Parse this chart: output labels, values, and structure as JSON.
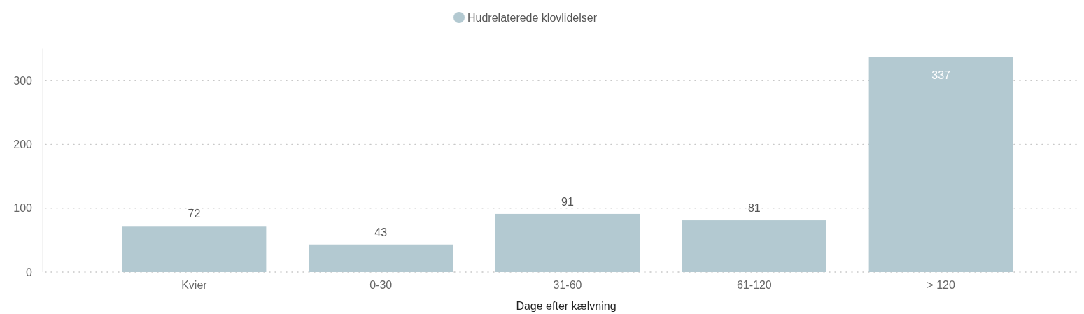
{
  "chart_data": {
    "type": "bar",
    "xlabel": "Dage efter kælvning",
    "categories": [
      "Kvier",
      "0-30",
      "31-60",
      "61-120",
      "> 120"
    ],
    "series": [
      {
        "name": "Hudrelaterede klovlidelser",
        "color": "#b3c9d1",
        "values": [
          72,
          43,
          91,
          81,
          337
        ]
      }
    ],
    "ylim": [
      0,
      350
    ],
    "yticks": [
      0,
      100,
      200,
      300
    ],
    "grid": "y",
    "legend": "top",
    "data_labels": true
  }
}
